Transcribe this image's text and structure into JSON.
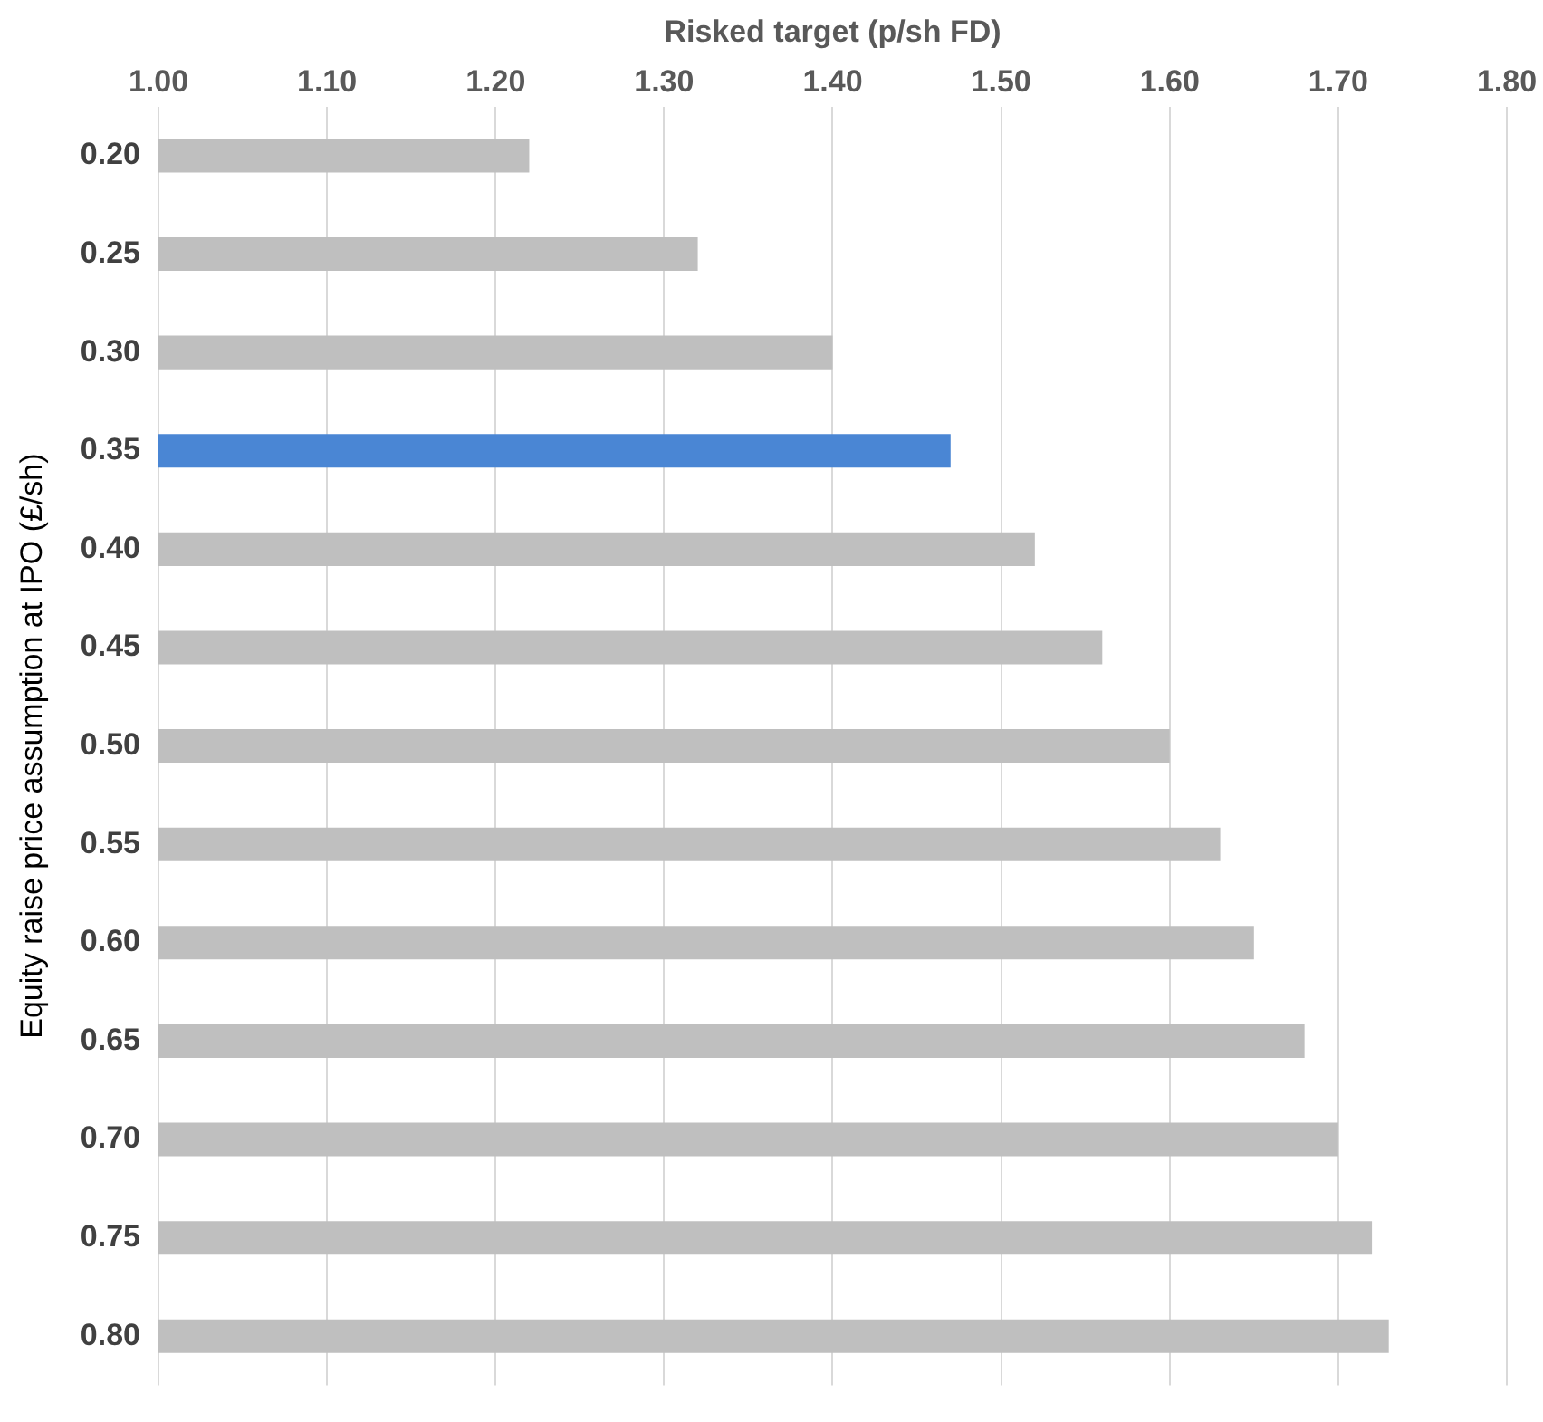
{
  "chart_data": {
    "type": "bar",
    "orientation": "horizontal",
    "xlabel": "Risked target (p/sh FD)",
    "ylabel": "Equity raise price assumption at IPO (£/sh)",
    "categories": [
      "0.20",
      "0.25",
      "0.30",
      "0.35",
      "0.40",
      "0.45",
      "0.50",
      "0.55",
      "0.60",
      "0.65",
      "0.70",
      "0.75",
      "0.80"
    ],
    "values": [
      1.22,
      1.32,
      1.4,
      1.47,
      1.52,
      1.56,
      1.6,
      1.63,
      1.65,
      1.68,
      1.7,
      1.72,
      1.73
    ],
    "colors": [
      "#bfbfbf",
      "#bfbfbf",
      "#bfbfbf",
      "#4a86d4",
      "#bfbfbf",
      "#bfbfbf",
      "#bfbfbf",
      "#bfbfbf",
      "#bfbfbf",
      "#bfbfbf",
      "#bfbfbf",
      "#bfbfbf",
      "#bfbfbf"
    ],
    "xlim": [
      1,
      1.8
    ],
    "xticks": [
      {
        "value": 1,
        "label": "1.00"
      },
      {
        "value": 1.1,
        "label": "1.10"
      },
      {
        "value": 1.2,
        "label": "1.20"
      },
      {
        "value": 1.3,
        "label": "1.30"
      },
      {
        "value": 1.4,
        "label": "1.40"
      },
      {
        "value": 1.5,
        "label": "1.50"
      },
      {
        "value": 1.6,
        "label": "1.60"
      },
      {
        "value": 1.7,
        "label": "1.70"
      },
      {
        "value": 1.8,
        "label": "1.80"
      }
    ],
    "grid": "x",
    "legend": false
  }
}
